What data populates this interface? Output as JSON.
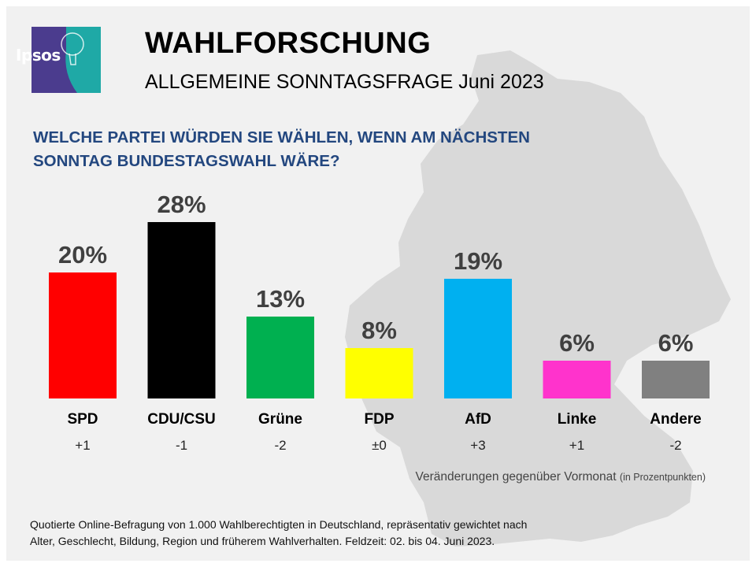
{
  "header": {
    "logo_text": "Ipsos",
    "title": "WAHLFORSCHUNG",
    "subtitle": "ALLGEMEINE SONNTAGSFRAGE Juni 2023"
  },
  "question_line1": "WELCHE PARTEI WÜRDEN SIE WÄHLEN, WENN AM NÄCHSTEN",
  "question_line2": "SONNTAG BUNDESTAGSWAHL WÄRE?",
  "colors": {
    "accent_blue": "#23477f",
    "logo_teal": "#1fa9a6",
    "logo_purple": "#4b3c8e",
    "map_gray": "#d9d9d9"
  },
  "chart_data": {
    "type": "bar",
    "title": "WELCHE PARTEI WÜRDEN SIE WÄHLEN, WENN AM NÄCHSTEN SONNTAG BUNDESTAGSWAHL WÄRE?",
    "categories": [
      "SPD",
      "CDU/CSU",
      "Grüne",
      "FDP",
      "AfD",
      "Linke",
      "Andere"
    ],
    "values": [
      20,
      28,
      13,
      8,
      19,
      6,
      6
    ],
    "value_labels": [
      "20%",
      "28%",
      "13%",
      "8%",
      "19%",
      "6%",
      "6%"
    ],
    "changes": [
      "+1",
      "-1",
      "-2",
      "±0",
      "+3",
      "+1",
      "-2"
    ],
    "bar_colors": [
      "#ff0000",
      "#000000",
      "#00b050",
      "#ffff00",
      "#00b0f0",
      "#ff33cc",
      "#808080"
    ],
    "unit": "%",
    "ylim": [
      0,
      28
    ],
    "grid": false,
    "xlabel": "",
    "ylabel": ""
  },
  "change_note": "Veränderungen gegenüber Vormonat",
  "change_note_small": "(in Prozentpunkten)",
  "footer": {
    "line1": "Quotierte Online-Befragung  von 1.000 Wahlberechtigten  in Deutschland, repräsentativ gewichtet nach",
    "line2": "Alter, Geschlecht, Bildung, Region und früherem Wahlverhalten.  Feldzeit: 02. bis 04. Juni 2023."
  }
}
